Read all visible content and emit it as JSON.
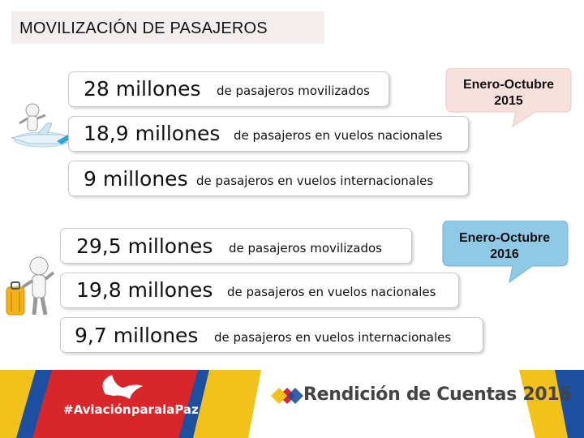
{
  "header": {
    "title": "MOVILIZACIÓN DE PASAJEROS"
  },
  "period_2015": {
    "badge": {
      "line1": "Enero-Octubre",
      "line2": "2015",
      "color": "#f8e1dd"
    },
    "rows": [
      {
        "value": "28 millones",
        "text": "de pasajeros movilizados"
      },
      {
        "value": "18,9 millones",
        "text": "de pasajeros en vuelos nacionales"
      },
      {
        "value": "9 millones",
        "text": "de pasajeros en vuelos internacionales"
      }
    ]
  },
  "period_2016": {
    "badge": {
      "line1": "Enero-Octubre",
      "line2": "2016",
      "color": "#8fc9e6"
    },
    "rows": [
      {
        "value": "29,5 millones",
        "text": "de pasajeros movilizados"
      },
      {
        "value": "19,8 millones",
        "text": "de pasajeros en vuelos nacionales"
      },
      {
        "value": "9,7 millones",
        "text": "de pasajeros en vuelos internacionales"
      }
    ]
  },
  "footer": {
    "hashtag": "#AviaciónparalaPaz",
    "report": "Rendición de Cuentas 2016",
    "colors": {
      "red": "#d9262a",
      "yellow": "#f3c21a",
      "blue": "#1d4fa0"
    }
  }
}
